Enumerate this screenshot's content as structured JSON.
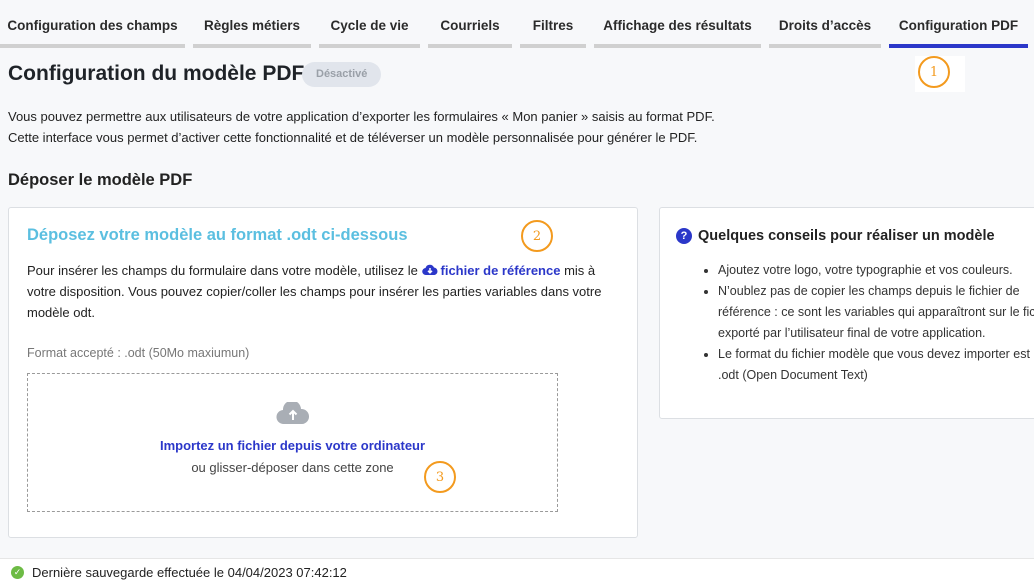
{
  "tabs": [
    {
      "label": "Configuration des champs"
    },
    {
      "label": "Règles métiers"
    },
    {
      "label": "Cycle de vie"
    },
    {
      "label": "Courriels"
    },
    {
      "label": "Filtres"
    },
    {
      "label": "Affichage des résultats"
    },
    {
      "label": "Droits d’accès"
    },
    {
      "label": "Configuration PDF",
      "active": true
    }
  ],
  "page": {
    "title": "Configuration du modèle PDF",
    "status_badge": "Désactivé",
    "intro_line1": "Vous pouvez permettre aux utilisateurs de votre application d’exporter les formulaires « Mon panier » saisis au format PDF.",
    "intro_line2": "Cette interface vous permet d’activer cette fonctionnalité et de téléverser un modèle personnalisée pour générer le PDF.",
    "section_title": "Déposer le modèle PDF"
  },
  "upload_card": {
    "title": "Déposez votre modèle au format .odt ci-dessous",
    "text_before": "Pour insérer les champs du formulaire dans votre modèle, utilisez le ",
    "reference_link": "fichier de référence",
    "text_after": " mis à votre disposition. Vous pouvez copier/coller les champs pour insérer les parties variables dans votre modèle odt.",
    "format_hint": "Format accepté : .odt (50Mo maxiumun)",
    "dropzone_link": "Importez un fichier depuis votre ordinateur",
    "dropzone_hint": "ou glisser-déposer dans cette zone"
  },
  "tips_card": {
    "title": "Quelques conseils pour réaliser un modèle",
    "help_icon": "?",
    "tips": [
      "Ajoutez votre logo, votre typographie et vos couleurs.",
      "N’oublez pas de copier les champs depuis le fichier de référence : ce sont les variables qui apparaîtront sur le fichier exporté par l’utilisateur final de votre application.",
      "Le format du fichier modèle que vous devez importer est un .odt (Open Document Text)"
    ]
  },
  "footer": {
    "last_save": "Dernière sauvegarde effectuée le 04/04/2023 07:42:12"
  },
  "annotations": [
    "1",
    "2",
    "3"
  ],
  "colors": {
    "accent": "#2b37c9",
    "card_title": "#5bbfe0",
    "annotation": "#f39a1e",
    "success": "#6dbb45"
  }
}
